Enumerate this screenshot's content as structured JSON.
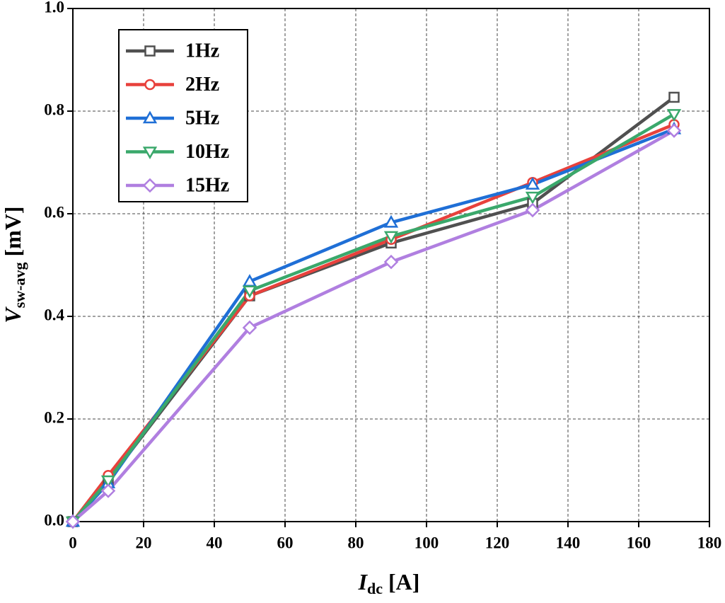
{
  "chart_data": {
    "type": "line",
    "x_label": {
      "main": "I",
      "sub": "dc",
      "unit": "[A]"
    },
    "y_label": {
      "main": "V",
      "sub": "sw-avg",
      "unit": "[mV]"
    },
    "x": [
      0,
      10,
      50,
      90,
      130,
      170
    ],
    "series": [
      {
        "name": "1Hz",
        "color": "#505050",
        "marker": "square",
        "values": [
          0,
          0.08,
          0.44,
          0.543,
          0.62,
          0.827
        ]
      },
      {
        "name": "2Hz",
        "color": "#e8413c",
        "marker": "circle",
        "values": [
          0,
          0.09,
          0.44,
          0.55,
          0.661,
          0.774
        ]
      },
      {
        "name": "5Hz",
        "color": "#1f6fd6",
        "marker": "triangle-up",
        "values": [
          0,
          0.075,
          0.468,
          0.583,
          0.657,
          0.765
        ]
      },
      {
        "name": "10Hz",
        "color": "#3aa86b",
        "marker": "triangle-down",
        "values": [
          0,
          0.08,
          0.45,
          0.556,
          0.633,
          0.794
        ]
      },
      {
        "name": "15Hz",
        "color": "#b07fe0",
        "marker": "diamond",
        "values": [
          0,
          0.06,
          0.378,
          0.506,
          0.607,
          0.762
        ]
      }
    ],
    "xlim": [
      0,
      180
    ],
    "xticks": [
      0,
      20,
      40,
      60,
      80,
      100,
      120,
      140,
      160,
      180
    ],
    "ylim": [
      0,
      1
    ],
    "yticks": [
      {
        "value": 0,
        "label": "0.0"
      },
      {
        "value": 0.2,
        "label": "0.2"
      },
      {
        "value": 0.4,
        "label": "0.4"
      },
      {
        "value": 0.6,
        "label": "0.6"
      },
      {
        "value": 0.8,
        "label": "0.8"
      },
      {
        "value": 1,
        "label": "1.0"
      }
    ],
    "grid": true,
    "legend": "upper-left"
  }
}
